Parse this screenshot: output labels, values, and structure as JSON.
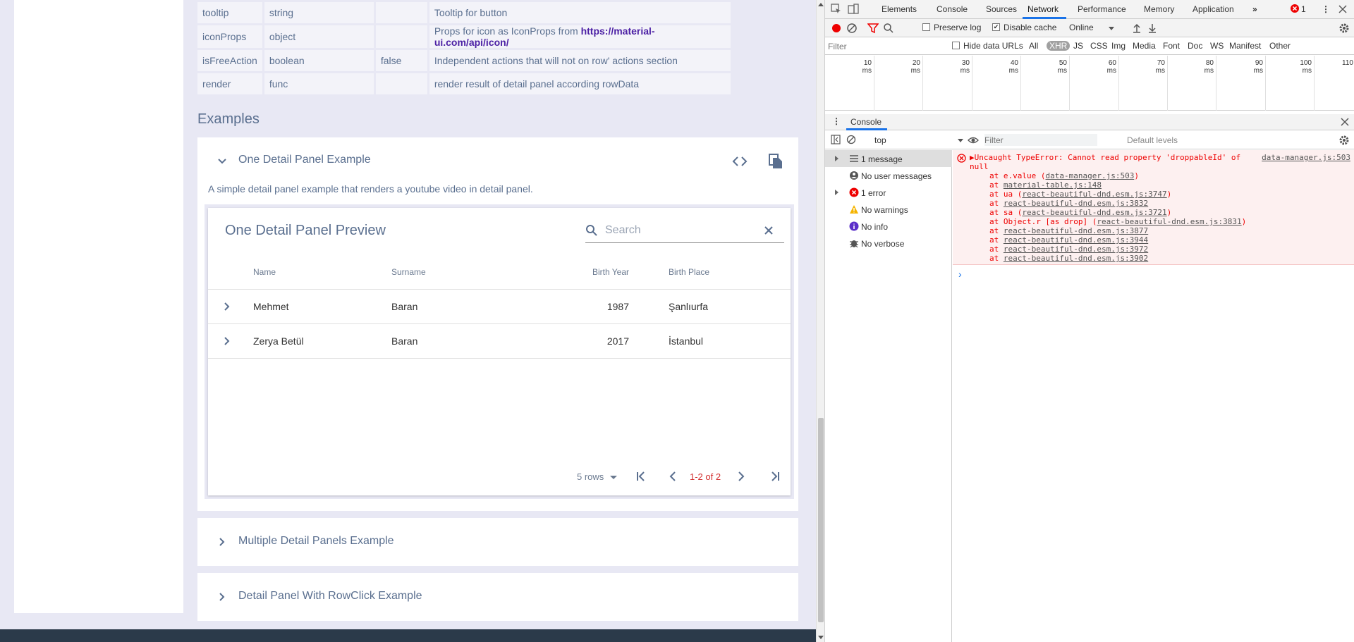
{
  "props_rows": [
    {
      "name": "tooltip",
      "type": "string",
      "default": "",
      "description": "Tooltip for button",
      "link": ""
    },
    {
      "name": "iconProps",
      "type": "object",
      "default": "",
      "description": "Props for icon as IconProps from ",
      "link": "https://material-ui.com/api/icon/"
    },
    {
      "name": "isFreeAction",
      "type": "boolean",
      "default": "false",
      "description": "Independent actions that will not on row' actions section",
      "link": ""
    },
    {
      "name": "render",
      "type": "func",
      "default": "",
      "description": "render result of detail panel according rowData",
      "link": ""
    }
  ],
  "examples_heading": "Examples",
  "panel1": {
    "title": "One Detail Panel Example",
    "description": "A simple detail panel example that renders a youtube video in detail panel.",
    "preview_title": "One Detail Panel Preview",
    "search_placeholder": "Search",
    "columns": [
      "Name",
      "Surname",
      "Birth Year",
      "Birth Place"
    ],
    "rows": [
      {
        "name": "Mehmet",
        "surname": "Baran",
        "year": "1987",
        "place": "Şanlıurfa"
      },
      {
        "name": "Zerya Betül",
        "surname": "Baran",
        "year": "2017",
        "place": "İstanbul"
      }
    ],
    "rows_per_page": "5 rows",
    "page_info": "1-2 of 2"
  },
  "panel2": {
    "title": "Multiple Detail Panels Example"
  },
  "panel3": {
    "title": "Detail Panel With RowClick Example"
  },
  "devtools": {
    "tabs": [
      "Elements",
      "Console",
      "Sources",
      "Network",
      "Performance",
      "Memory",
      "Application"
    ],
    "active_tab": "Network",
    "error_count": "1",
    "preserve_log": "Preserve log",
    "disable_cache": "Disable cache",
    "throttle": "Online",
    "filter_placeholder": "Filter",
    "hide_data_urls": "Hide data URLs",
    "filter_types": [
      "All",
      "XHR",
      "JS",
      "CSS",
      "Img",
      "Media",
      "Font",
      "Doc",
      "WS",
      "Manifest",
      "Other"
    ],
    "timeline_labels": [
      "10 ms",
      "20 ms",
      "30 ms",
      "40 ms",
      "50 ms",
      "60 ms",
      "70 ms",
      "80 ms",
      "90 ms",
      "100 ms",
      "110"
    ],
    "drawer_tab": "Console",
    "context": "top",
    "console_filter_placeholder": "Filter",
    "levels": "Default levels",
    "sidebar_items": [
      "1 message",
      "No user messages",
      "1 error",
      "No warnings",
      "No info",
      "No verbose"
    ],
    "error_lines": [
      "▶Uncaught TypeError: Cannot read property 'droppableId' of",
      "null"
    ],
    "error_source": "data-manager.js:503",
    "stack": [
      {
        "pre": "at e.value (",
        "link": "data-manager.js:503",
        "post": ")"
      },
      {
        "pre": "at ",
        "link": "material-table.js:148",
        "post": ""
      },
      {
        "pre": "at ua (",
        "link": "react-beautiful-dnd.esm.js:3747",
        "post": ")"
      },
      {
        "pre": "at ",
        "link": "react-beautiful-dnd.esm.js:3832",
        "post": ""
      },
      {
        "pre": "at sa (",
        "link": "react-beautiful-dnd.esm.js:3721",
        "post": ")"
      },
      {
        "pre": "at Object.r [as drop] (",
        "link": "react-beautiful-dnd.esm.js:3831",
        "post": ")"
      },
      {
        "pre": "at ",
        "link": "react-beautiful-dnd.esm.js:3877",
        "post": ""
      },
      {
        "pre": "at ",
        "link": "react-beautiful-dnd.esm.js:3944",
        "post": ""
      },
      {
        "pre": "at ",
        "link": "react-beautiful-dnd.esm.js:3972",
        "post": ""
      },
      {
        "pre": "at ",
        "link": "react-beautiful-dnd.esm.js:3902",
        "post": ""
      }
    ],
    "prompt": "›"
  },
  "colors": {
    "accent": "#5a6f8f",
    "link": "#4b1fa4",
    "error": "#d32f2f",
    "devtools_blue": "#1a73e8"
  }
}
